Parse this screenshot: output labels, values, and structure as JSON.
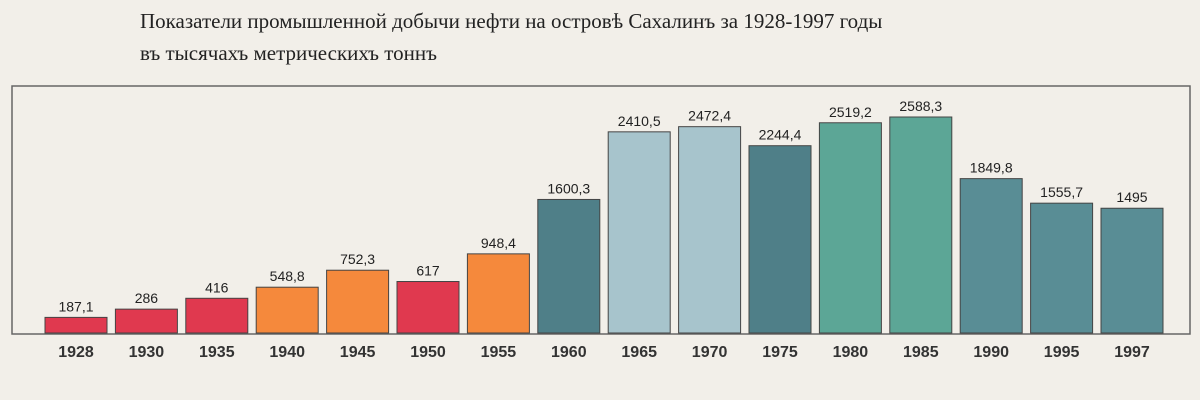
{
  "chart_data": {
    "type": "bar",
    "title": "Показатели промышленной добычи нефти на островѣ Сахалинъ за 1928-1997 годы",
    "subtitle": "въ тысячахъ метрическихъ тоннъ",
    "categories": [
      "1928",
      "1930",
      "1935",
      "1940",
      "1945",
      "1950",
      "1955",
      "1960",
      "1965",
      "1970",
      "1975",
      "1980",
      "1985",
      "1990",
      "1995",
      "1997"
    ],
    "values": [
      187.1,
      286,
      416,
      548.8,
      752.3,
      617,
      948.4,
      1600.3,
      2410.5,
      2472.4,
      2244.4,
      2519.2,
      2588.3,
      1849.8,
      1555.7,
      1495
    ],
    "value_labels": [
      "187,1",
      "286",
      "416",
      "548,8",
      "752,3",
      "617",
      "948,4",
      "1600,3",
      "2410,5",
      "2472,4",
      "2244,4",
      "2519,2",
      "2588,3",
      "1849,8",
      "1555,7",
      "1495"
    ],
    "colors": [
      "#e0394f",
      "#e0394f",
      "#e0394f",
      "#f5893c",
      "#f5893c",
      "#e0394f",
      "#f5893c",
      "#4f7f88",
      "#a7c4cc",
      "#a7c4cc",
      "#4f7f88",
      "#5ca696",
      "#5ca696",
      "#598d95",
      "#598d95",
      "#598d95"
    ]
  }
}
